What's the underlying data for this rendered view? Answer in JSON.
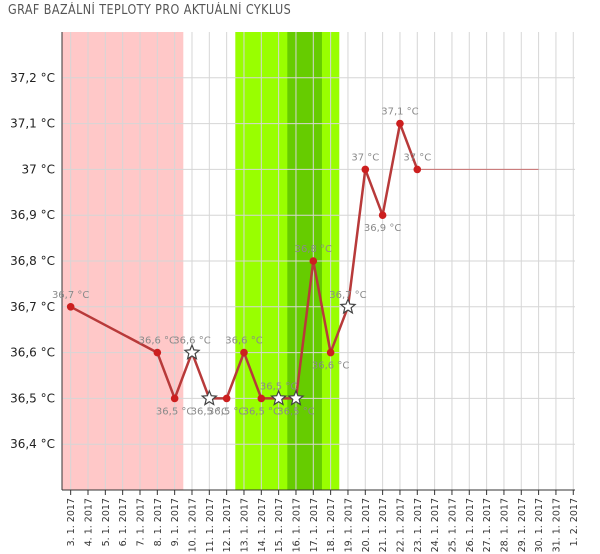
{
  "title": "GRAF BAZÁLNÍ TEPLOTY PRO AKTUÁLNÍ CYKLUS",
  "chart_data": {
    "type": "line",
    "title": "GRAF BAZÁLNÍ TEPLOTY PRO AKTUÁLNÍ CYKLUS",
    "x_categories": [
      "3. 1. 2017",
      "4. 1. 2017",
      "5. 1. 2017",
      "6. 1. 2017",
      "7. 1. 2017",
      "8. 1. 2017",
      "9. 1. 2017",
      "10. 1. 2017",
      "11. 1. 2017",
      "12. 1. 2017",
      "13. 1. 2017",
      "14. 1. 2017",
      "15. 1. 2017",
      "16. 1. 2017",
      "17. 1. 2017",
      "18. 1. 2017",
      "19. 1. 2017",
      "20. 1. 2017",
      "21. 1. 2017",
      "22. 1. 2017",
      "23. 1. 2017",
      "24. 1. 2017",
      "25. 1. 2017",
      "26. 1. 2017",
      "27. 1. 2017",
      "28. 1. 2017",
      "29. 1. 2017",
      "30. 1. 2017",
      "31. 1. 2017",
      "1. 2. 2017"
    ],
    "y_ticks": [
      "36,4 °C",
      "36,5 °C",
      "36,6 °C",
      "36,7 °C",
      "36,8 °C",
      "36,9 °C",
      "37 °C",
      "37,1 °C",
      "37,2 °C"
    ],
    "y_tick_values": [
      36.4,
      36.5,
      36.6,
      36.7,
      36.8,
      36.9,
      37.0,
      37.1,
      37.2
    ],
    "ylim": [
      36.3,
      37.3
    ],
    "grid": true,
    "shaded_regions": [
      {
        "from": 0,
        "to": 6,
        "color": "#ffc8c8"
      },
      {
        "from": 10,
        "to": 15,
        "color": "#99ff00"
      },
      {
        "from": 13,
        "to": 14,
        "color": "#66cc00"
      }
    ],
    "series": [
      {
        "color": "#b83a3a",
        "points": [
          {
            "x": 0,
            "y": 36.7,
            "label": "36,7 °C",
            "marker": "dot"
          },
          {
            "x": 5,
            "y": 36.6,
            "label": "36,6 °C",
            "marker": "dot"
          },
          {
            "x": 6,
            "y": 36.5,
            "label": "36,5 °C",
            "marker": "dot"
          },
          {
            "x": 7,
            "y": 36.6,
            "label": "36,6 °C",
            "marker": "star"
          },
          {
            "x": 8,
            "y": 36.5,
            "label": "36,5 °C",
            "marker": "star"
          },
          {
            "x": 9,
            "y": 36.5,
            "label": "36,5 °C",
            "marker": "dot"
          },
          {
            "x": 10,
            "y": 36.6,
            "label": "36,6 °C",
            "marker": "dot"
          },
          {
            "x": 11,
            "y": 36.5,
            "label": "36,5 °C",
            "marker": "dot"
          },
          {
            "x": 12,
            "y": 36.5,
            "label": "36,5 °C",
            "marker": "star"
          },
          {
            "x": 13,
            "y": 36.5,
            "label": "36,5 °C",
            "marker": "star"
          },
          {
            "x": 14,
            "y": 36.8,
            "label": "36,8 °C",
            "marker": "dot"
          },
          {
            "x": 15,
            "y": 36.6,
            "label": "36,6 °C",
            "marker": "dot"
          },
          {
            "x": 16,
            "y": 36.7,
            "label": "36,7 °C",
            "marker": "star"
          },
          {
            "x": 17,
            "y": 37.0,
            "label": "37 °C",
            "marker": "dot"
          },
          {
            "x": 18,
            "y": 36.9,
            "label": "36,9 °C",
            "marker": "dot"
          },
          {
            "x": 19,
            "y": 37.1,
            "label": "37,1 °C",
            "marker": "dot"
          },
          {
            "x": 20,
            "y": 37.0,
            "label": "37 °C",
            "marker": "dot"
          }
        ]
      }
    ],
    "reference_line": {
      "from": 20,
      "to": 27,
      "y": 37.0,
      "color": "#c87070"
    }
  }
}
